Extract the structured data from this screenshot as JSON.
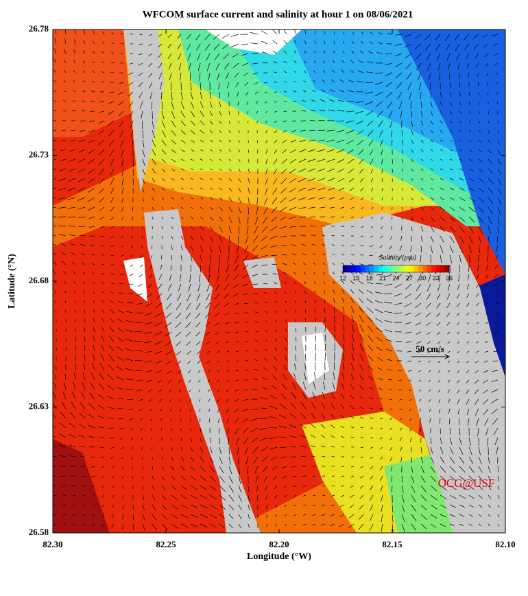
{
  "chart_data": {
    "type": "map",
    "title": "WFCOM surface current and salinity at hour 1 on 08/06/2021",
    "x_label": "Longitude (°W)",
    "y_label": "Latitude (°N)",
    "xlim": [
      82.3,
      82.1
    ],
    "ylim": [
      26.58,
      26.78
    ],
    "xticks": [
      {
        "value": 82.3,
        "label": "82.30"
      },
      82.25,
      {
        "value": 82.2,
        "label": "82.20"
      },
      82.15,
      {
        "value": 82.1,
        "label": "82.10"
      }
    ],
    "yticks": [
      26.58,
      26.63,
      26.68,
      26.73,
      26.78
    ],
    "colorbar": {
      "label": "Salinity (psu)",
      "lim": [
        12,
        36
      ],
      "ticks": [
        12,
        15,
        18,
        21,
        24,
        27,
        30,
        33,
        36
      ]
    },
    "scale_label": "50 cm/s",
    "credit": "OCG@USF"
  }
}
